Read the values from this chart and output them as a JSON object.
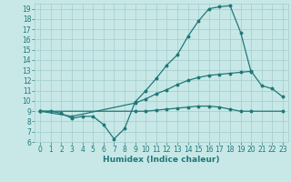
{
  "title": "",
  "xlabel": "Humidex (Indice chaleur)",
  "ylabel": "",
  "background_color": "#c8e8e8",
  "grid_color": "#a8d0d0",
  "line_color": "#207878",
  "x": [
    0,
    1,
    2,
    3,
    4,
    5,
    6,
    7,
    8,
    9,
    10,
    11,
    12,
    13,
    14,
    15,
    16,
    17,
    18,
    19,
    20,
    21,
    22,
    23
  ],
  "line1": [
    9.0,
    9.0,
    8.8,
    8.3,
    8.5,
    8.5,
    7.7,
    6.3,
    7.3,
    9.9,
    11.0,
    12.2,
    13.5,
    14.5,
    16.3,
    17.8,
    19.0,
    19.2,
    19.3,
    16.7,
    12.8,
    null,
    null,
    null
  ],
  "line2": [
    9.0,
    null,
    null,
    8.5,
    null,
    null,
    null,
    null,
    null,
    9.8,
    10.2,
    10.7,
    11.1,
    11.6,
    12.0,
    12.3,
    12.5,
    12.6,
    12.7,
    12.8,
    12.9,
    11.5,
    11.2,
    10.4
  ],
  "line3": [
    9.0,
    null,
    null,
    null,
    null,
    null,
    null,
    null,
    null,
    9.0,
    9.0,
    9.1,
    9.2,
    9.3,
    9.4,
    9.5,
    9.5,
    9.4,
    9.2,
    9.0,
    9.0,
    null,
    null,
    9.0
  ],
  "xlim": [
    -0.5,
    23.5
  ],
  "ylim": [
    6,
    19.5
  ],
  "yticks": [
    6,
    7,
    8,
    9,
    10,
    11,
    12,
    13,
    14,
    15,
    16,
    17,
    18,
    19
  ],
  "xticks": [
    0,
    1,
    2,
    3,
    4,
    5,
    6,
    7,
    8,
    9,
    10,
    11,
    12,
    13,
    14,
    15,
    16,
    17,
    18,
    19,
    20,
    21,
    22,
    23
  ],
  "tick_fontsize": 5.5,
  "xlabel_fontsize": 6.5,
  "marker_size": 1.8,
  "line_width": 0.9
}
